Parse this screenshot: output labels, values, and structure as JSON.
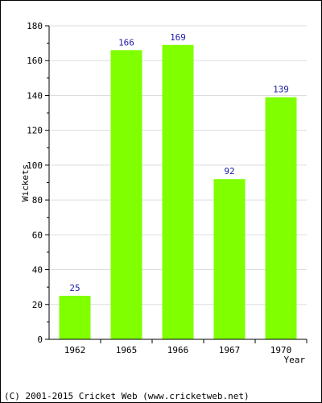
{
  "chart_data": {
    "type": "bar",
    "categories": [
      "1962",
      "1965",
      "1966",
      "1967",
      "1970"
    ],
    "values": [
      25,
      166,
      169,
      92,
      139
    ],
    "data_labels": [
      "25",
      "166",
      "169",
      "92",
      "139"
    ],
    "xlabel": "Year",
    "ylabel": "Wickets",
    "ylim": [
      0,
      180
    ],
    "yticks": [
      0,
      20,
      40,
      60,
      80,
      100,
      120,
      140,
      160,
      180
    ],
    "grid": "horizontal",
    "bar_color": "#80ff00"
  },
  "footer": {
    "copyright": "(C) 2001-2015 Cricket Web (www.cricketweb.net)"
  }
}
